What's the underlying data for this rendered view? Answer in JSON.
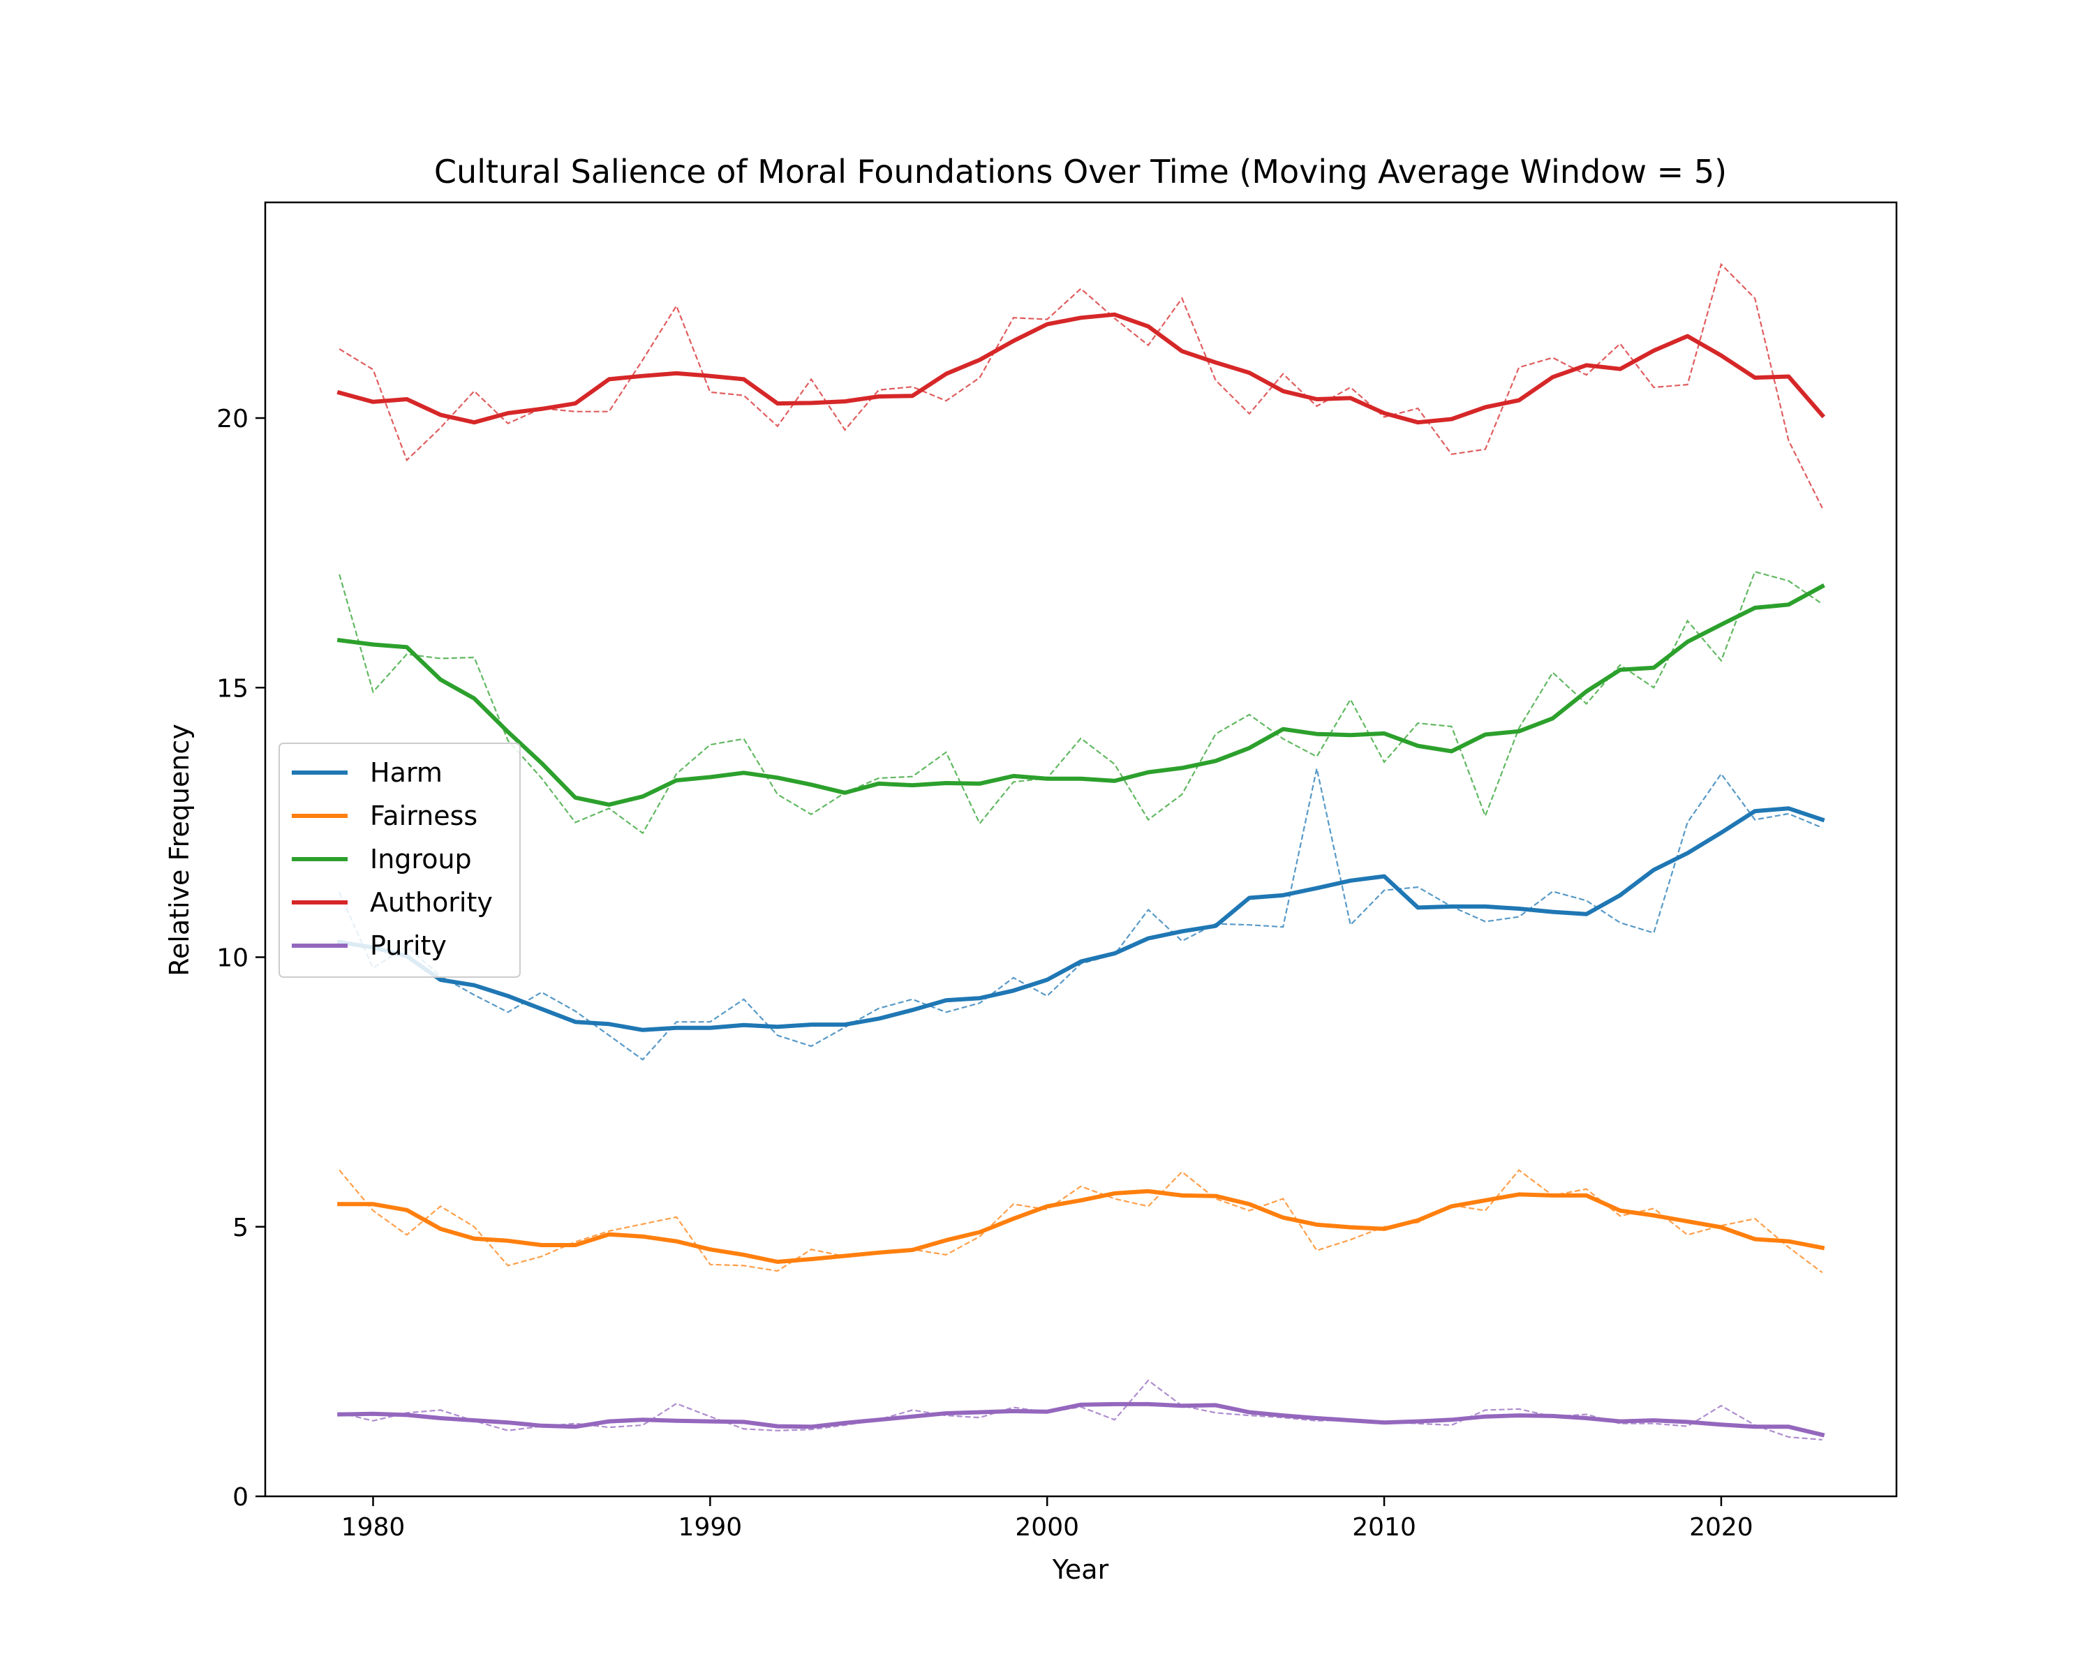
{
  "chart_data": {
    "type": "line",
    "title": "Cultural Salience of Moral Foundations Over Time (Moving Average Window = 5)",
    "xlabel": "Year",
    "ylabel": "Relative Frequency",
    "xlim": [
      1976.8,
      2025.2
    ],
    "ylim": [
      0,
      24
    ],
    "xticks": [
      1980,
      1990,
      2000,
      2010,
      2020
    ],
    "yticks": [
      0,
      5,
      10,
      15,
      20
    ],
    "grid": false,
    "legend_position": "center-left",
    "x": [
      1979,
      1980,
      1981,
      1982,
      1983,
      1984,
      1985,
      1986,
      1987,
      1988,
      1989,
      1990,
      1991,
      1992,
      1993,
      1994,
      1995,
      1996,
      1997,
      1998,
      1999,
      2000,
      2001,
      2002,
      2003,
      2004,
      2005,
      2006,
      2007,
      2008,
      2009,
      2010,
      2011,
      2012,
      2013,
      2014,
      2015,
      2016,
      2017,
      2018,
      2019,
      2020,
      2021,
      2022,
      2023
    ],
    "series": [
      {
        "name": "Harm",
        "color": "#1f77b4",
        "smoothed": [
          10.28,
          10.18,
          10.02,
          9.58,
          9.48,
          9.28,
          9.04,
          8.8,
          8.76,
          8.65,
          8.69,
          8.69,
          8.74,
          8.71,
          8.75,
          8.75,
          8.86,
          9.02,
          9.2,
          9.24,
          9.38,
          9.58,
          9.92,
          10.07,
          10.35,
          10.48,
          10.58,
          11.1,
          11.15,
          11.28,
          11.42,
          11.5,
          10.92,
          10.94,
          10.94,
          10.9,
          10.84,
          10.8,
          11.15,
          11.62,
          11.93,
          12.31,
          12.71,
          12.76,
          12.55
        ],
        "raw": [
          11.2,
          9.8,
          10.2,
          9.65,
          9.3,
          8.98,
          9.35,
          9.0,
          8.55,
          8.1,
          8.8,
          8.8,
          9.22,
          8.55,
          8.35,
          8.7,
          9.05,
          9.22,
          8.98,
          9.15,
          9.62,
          9.28,
          9.88,
          10.05,
          10.88,
          10.3,
          10.62,
          10.6,
          10.56,
          13.5,
          10.6,
          11.24,
          11.3,
          10.94,
          10.66,
          10.75,
          11.22,
          11.05,
          10.64,
          10.45,
          12.5,
          13.4,
          12.55,
          12.66,
          12.4
        ]
      },
      {
        "name": "Fairness",
        "color": "#ff7f0e",
        "smoothed": [
          5.42,
          5.42,
          5.31,
          4.96,
          4.78,
          4.74,
          4.66,
          4.66,
          4.86,
          4.82,
          4.73,
          4.58,
          4.48,
          4.35,
          4.4,
          4.46,
          4.52,
          4.57,
          4.75,
          4.9,
          5.15,
          5.38,
          5.49,
          5.62,
          5.66,
          5.58,
          5.57,
          5.42,
          5.17,
          5.04,
          4.99,
          4.96,
          5.12,
          5.38,
          5.49,
          5.6,
          5.58,
          5.58,
          5.3,
          5.21,
          5.1,
          4.99,
          4.77,
          4.73,
          4.61
        ],
        "raw": [
          6.05,
          5.3,
          4.85,
          5.38,
          5.0,
          4.28,
          4.45,
          4.72,
          4.92,
          5.05,
          5.18,
          4.3,
          4.28,
          4.18,
          4.58,
          4.45,
          4.5,
          4.58,
          4.48,
          4.82,
          5.42,
          5.32,
          5.75,
          5.52,
          5.38,
          6.02,
          5.52,
          5.3,
          5.52,
          4.56,
          4.76,
          5.0,
          5.08,
          5.4,
          5.3,
          6.05,
          5.58,
          5.7,
          5.2,
          5.34,
          4.85,
          5.02,
          5.15,
          4.62,
          4.15
        ]
      },
      {
        "name": "Ingroup",
        "color": "#2ca02c",
        "smoothed": [
          15.88,
          15.8,
          15.75,
          15.15,
          14.8,
          14.18,
          13.6,
          12.96,
          12.83,
          12.98,
          13.28,
          13.34,
          13.42,
          13.33,
          13.2,
          13.05,
          13.22,
          13.19,
          13.23,
          13.22,
          13.36,
          13.31,
          13.31,
          13.27,
          13.43,
          13.51,
          13.64,
          13.88,
          14.23,
          14.14,
          14.12,
          14.15,
          13.92,
          13.82,
          14.13,
          14.19,
          14.43,
          14.93,
          15.33,
          15.37,
          15.85,
          16.17,
          16.48,
          16.54,
          16.88
        ],
        "raw": [
          17.1,
          14.92,
          15.62,
          15.54,
          15.56,
          14.02,
          13.32,
          12.5,
          12.76,
          12.3,
          13.4,
          13.94,
          14.05,
          13.02,
          12.65,
          13.05,
          13.32,
          13.35,
          13.8,
          12.48,
          13.25,
          13.32,
          14.06,
          13.58,
          12.55,
          13.02,
          14.14,
          14.5,
          14.05,
          13.72,
          14.78,
          13.62,
          14.34,
          14.28,
          12.62,
          14.25,
          15.28,
          14.7,
          15.42,
          15.0,
          16.24,
          15.5,
          17.15,
          16.98,
          16.55
        ]
      },
      {
        "name": "Authority",
        "color": "#d62728",
        "smoothed": [
          20.47,
          20.3,
          20.35,
          20.06,
          19.92,
          20.09,
          20.17,
          20.27,
          20.72,
          20.78,
          20.83,
          20.78,
          20.72,
          20.27,
          20.28,
          20.31,
          20.4,
          20.41,
          20.82,
          21.08,
          21.43,
          21.74,
          21.86,
          21.92,
          21.7,
          21.24,
          21.03,
          20.84,
          20.5,
          20.35,
          20.37,
          20.09,
          19.92,
          19.98,
          20.2,
          20.33,
          20.76,
          20.98,
          20.91,
          21.25,
          21.52,
          21.16,
          20.75,
          20.77,
          20.05
        ],
        "raw": [
          21.28,
          20.9,
          19.22,
          19.82,
          20.5,
          19.9,
          20.18,
          20.12,
          20.12,
          21.08,
          22.08,
          20.48,
          20.42,
          19.85,
          20.72,
          19.78,
          20.52,
          20.58,
          20.32,
          20.75,
          21.86,
          21.83,
          22.4,
          21.85,
          21.35,
          22.22,
          20.7,
          20.08,
          20.82,
          20.22,
          20.57,
          20.02,
          20.18,
          19.33,
          19.42,
          20.94,
          21.12,
          20.8,
          21.38,
          20.57,
          20.62,
          22.85,
          22.22,
          19.58,
          18.33
        ]
      },
      {
        "name": "Purity",
        "color": "#9467bd",
        "smoothed": [
          1.52,
          1.53,
          1.51,
          1.45,
          1.41,
          1.37,
          1.31,
          1.29,
          1.39,
          1.42,
          1.4,
          1.39,
          1.38,
          1.3,
          1.29,
          1.36,
          1.42,
          1.48,
          1.54,
          1.56,
          1.58,
          1.57,
          1.7,
          1.71,
          1.71,
          1.68,
          1.69,
          1.56,
          1.5,
          1.45,
          1.41,
          1.37,
          1.39,
          1.42,
          1.48,
          1.5,
          1.49,
          1.45,
          1.39,
          1.41,
          1.38,
          1.33,
          1.29,
          1.29,
          1.14
        ],
        "raw": [
          1.55,
          1.4,
          1.55,
          1.6,
          1.4,
          1.22,
          1.3,
          1.35,
          1.28,
          1.32,
          1.72,
          1.48,
          1.25,
          1.22,
          1.24,
          1.32,
          1.42,
          1.6,
          1.5,
          1.46,
          1.65,
          1.56,
          1.66,
          1.42,
          2.15,
          1.68,
          1.55,
          1.5,
          1.46,
          1.4,
          1.42,
          1.38,
          1.35,
          1.32,
          1.6,
          1.62,
          1.48,
          1.52,
          1.35,
          1.35,
          1.3,
          1.68,
          1.32,
          1.1,
          1.05
        ]
      }
    ]
  }
}
